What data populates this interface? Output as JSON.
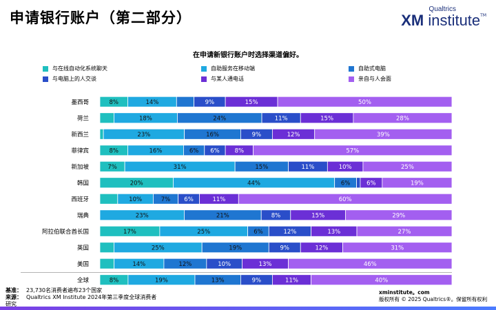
{
  "page": {
    "title": "申请银行账户（第二部分）",
    "logo_top": "Qualtrics",
    "logo_xm": "XM",
    "logo_rest": " institute",
    "logo_tm": "TM"
  },
  "chart_data": {
    "type": "bar",
    "orientation": "horizontal",
    "stacked": true,
    "title": "在申请新银行账户时选择渠道偏好。",
    "categories": [
      "墨西哥",
      "荷兰",
      "新西兰",
      "菲律宾",
      "新加坡",
      "韩国",
      "西班牙",
      "瑞典",
      "阿拉伯联合酋长国",
      "英国",
      "美国",
      "全球"
    ],
    "series": [
      {
        "name": "与在线自动化系统聊天",
        "color": "#1fbfbf",
        "values": [
          8,
          4,
          1,
          8,
          7,
          20,
          5,
          0,
          17,
          4,
          4,
          8
        ]
      },
      {
        "name": "自助服务在移动端",
        "color": "#1fa9e1",
        "values": [
          14,
          18,
          23,
          16,
          31,
          44,
          10,
          23,
          25,
          25,
          14,
          19
        ]
      },
      {
        "name": "自助式电脑",
        "color": "#1f76d1",
        "values": [
          5,
          24,
          16,
          6,
          15,
          6,
          7,
          21,
          6,
          19,
          12,
          13
        ]
      },
      {
        "name": "与电脑上的人交谈",
        "color": "#2a4ec9",
        "values": [
          9,
          11,
          9,
          6,
          11,
          1,
          6,
          8,
          12,
          9,
          10,
          9
        ]
      },
      {
        "name": "与某人通电话",
        "color": "#6b2fd6",
        "values": [
          15,
          15,
          12,
          8,
          10,
          6,
          11,
          15,
          13,
          12,
          13,
          11
        ]
      },
      {
        "name": "亲自与人会面",
        "color": "#a35ff0",
        "values": [
          50,
          28,
          39,
          57,
          25,
          19,
          60,
          29,
          27,
          31,
          46,
          40
        ]
      }
    ],
    "hidden_labels": {
      "墨西哥": [
        2
      ],
      "荷兰": [
        0
      ],
      "新西兰": [
        0
      ],
      "韩国": [
        3
      ],
      "西班牙": [
        0
      ],
      "瑞典": [
        0
      ],
      "英国": [
        0
      ],
      "美国": [
        0
      ]
    },
    "legend_position": "top",
    "grid": false
  },
  "footer": {
    "base_label": "基准：",
    "base_text": "23,730名消费者遍布23个国家",
    "source_label": "来源：",
    "source_text": "Qualtrics XM Institute 2024年第三季度全球消费者",
    "source_text2": "研究",
    "site": "xminstitute。com",
    "copyright": "版权所有 © 2025 Qualtrics®。保留所有权利",
    "copyright_end": "。"
  }
}
